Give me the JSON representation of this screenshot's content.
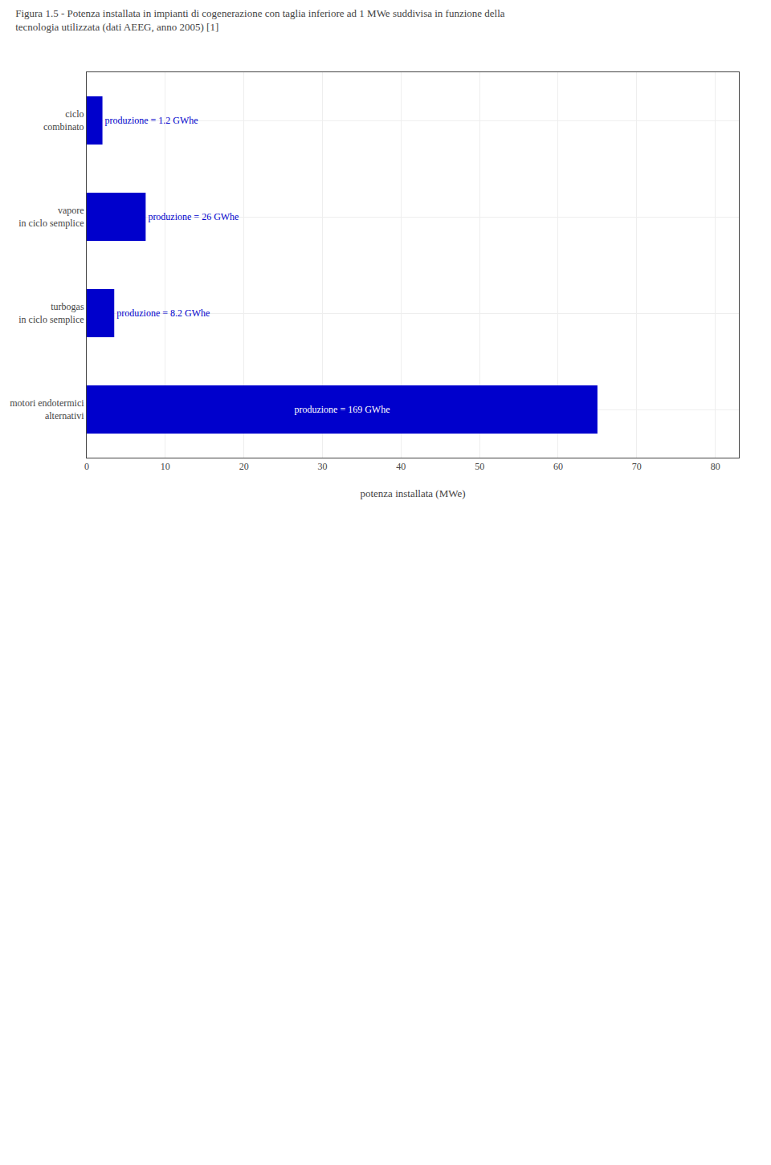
{
  "chart_data": {
    "type": "bar",
    "orientation": "horizontal",
    "title": "Figura 1.5 - Potenza installata in impianti di cogenerazione con taglia inferiore ad 1 MWe suddivisa in funzione della\ntecnologia utilizzata (dati AEEG, anno 2005) [1]",
    "x_label": "potenza installata (MWe)",
    "categories": [
      "ciclo\ncombinato",
      "vapore\nin ciclo semplice",
      "turbogas\nin ciclo semplice",
      "motori endotermici\nalternativi"
    ],
    "values": [
      2.0,
      7.5,
      3.5,
      65.0
    ],
    "annotations": [
      {
        "category": "ciclo\ncombinato",
        "text": "produzione = 1.2 GWhe"
      },
      {
        "category": "vapore\nin ciclo semplice",
        "text": "produzione = 26 GWhe"
      },
      {
        "category": "turbogas\nin ciclo semplice",
        "text": "produzione = 8.2 GWhe"
      },
      {
        "category": "motori endotermici\nalternativi",
        "text": "produzione = 169 GWhe"
      }
    ],
    "color": "#0000cc",
    "xlim": [
      0,
      83
    ],
    "xticks": [
      0,
      10,
      20,
      30,
      40,
      50,
      60,
      70,
      80
    ],
    "grid": true
  }
}
